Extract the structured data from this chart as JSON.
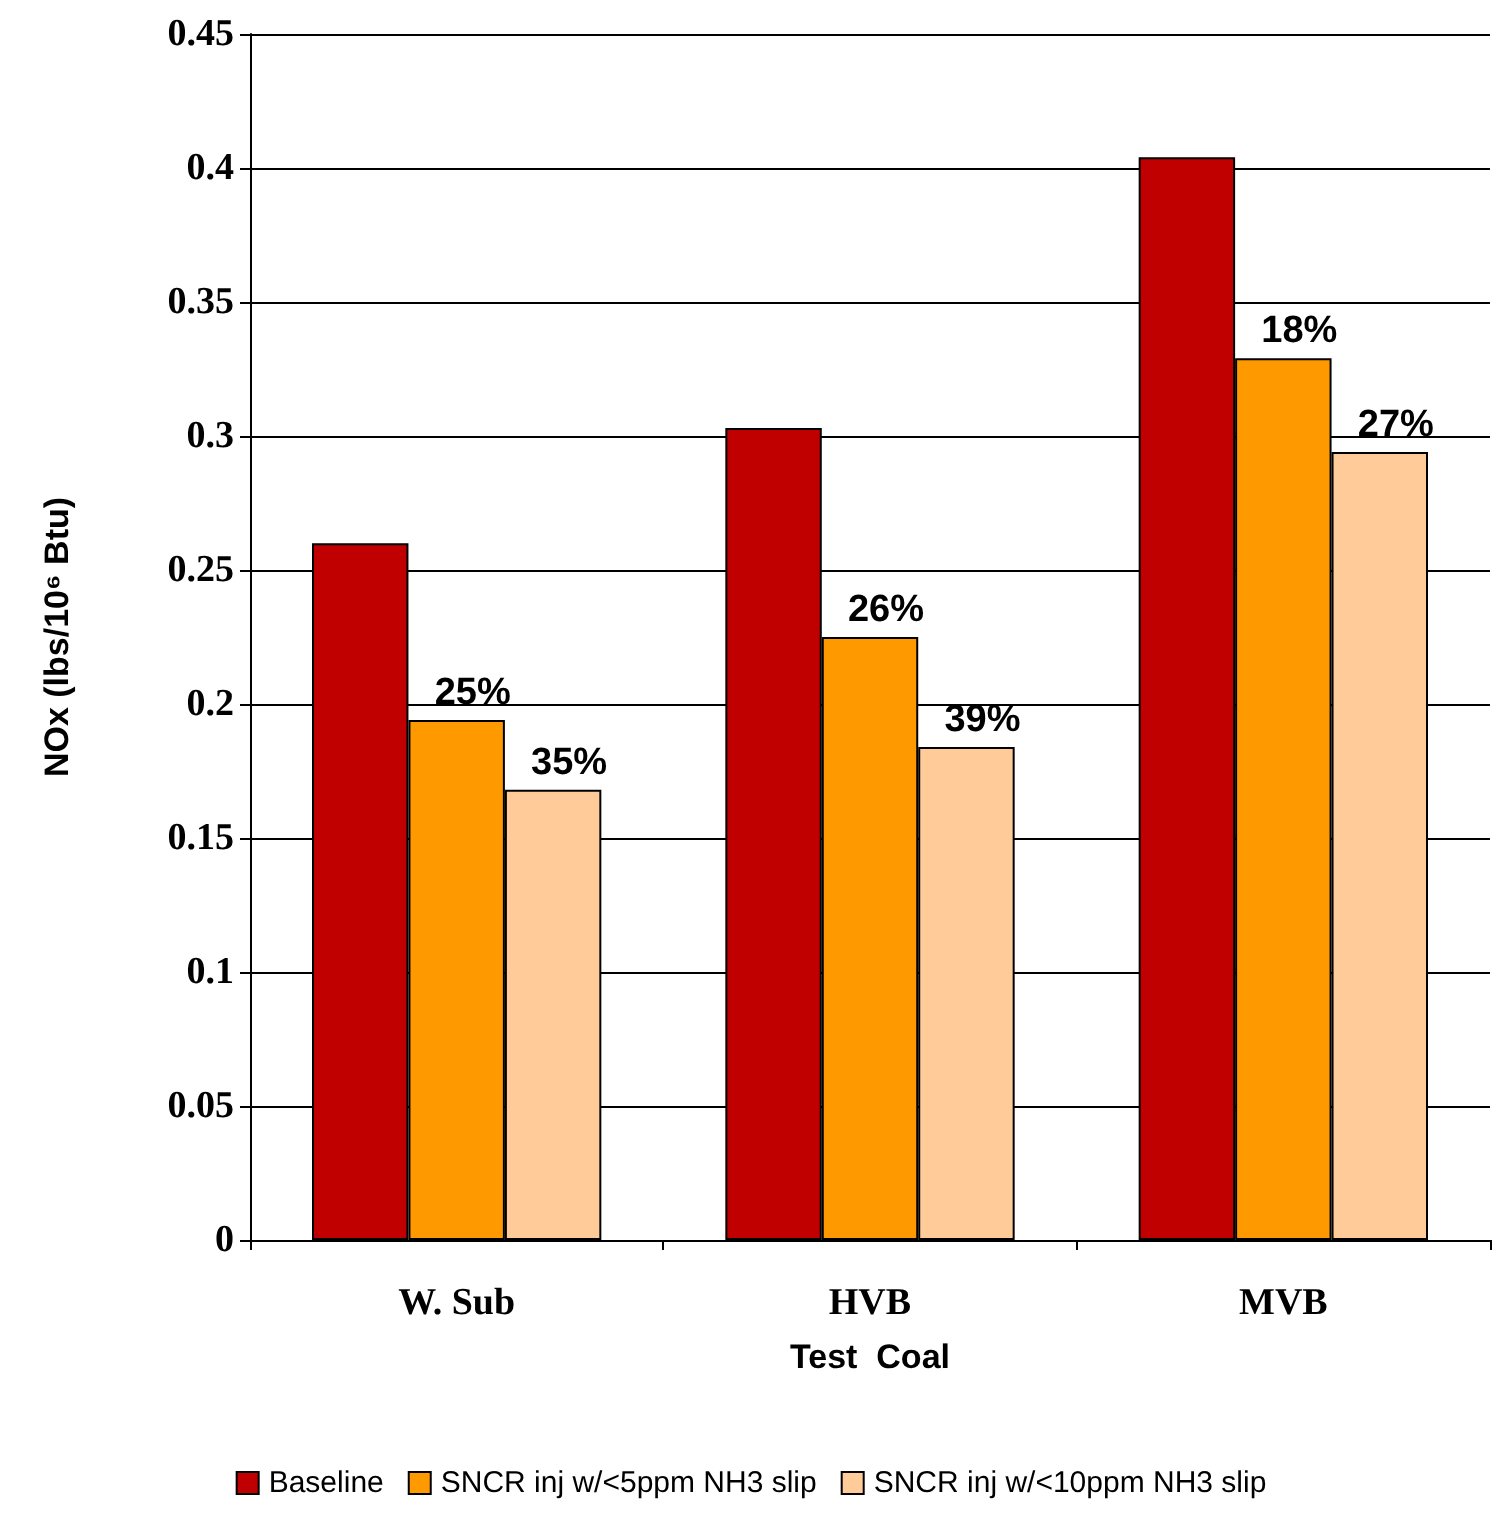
{
  "chart_data": {
    "type": "bar",
    "xlabel": "Test  Coal",
    "ylabel": "NOx (lbs/10⁶ Btu)",
    "categories": [
      "W. Sub",
      "HVB",
      "MVB"
    ],
    "series": [
      {
        "name": "Baseline",
        "color": "#c00000",
        "values": [
          0.26,
          0.303,
          0.404
        ]
      },
      {
        "name": "SNCR inj w/<5ppm NH3 slip",
        "color": "#ff9900",
        "values": [
          0.194,
          0.225,
          0.329
        ]
      },
      {
        "name": "SNCR inj w/<10ppm NH3 slip",
        "color": "#ffcc99",
        "values": [
          0.168,
          0.184,
          0.294
        ]
      }
    ],
    "annotations": [
      {
        "text": "25%",
        "x": "W. Sub",
        "y": 0.194
      },
      "35%",
      {
        "text": "26%",
        "x": "HVB",
        "y": 0.225
      },
      "39%",
      {
        "text": "18%",
        "x": "MVB",
        "y": 0.329
      },
      "27%"
    ],
    "ylim": [
      0,
      0.45
    ],
    "yticks": [
      0,
      0.05,
      0.1,
      0.15,
      0.2,
      0.25,
      0.3,
      0.35,
      0.4,
      0.45
    ],
    "grid": "y",
    "legend": "bottom"
  }
}
